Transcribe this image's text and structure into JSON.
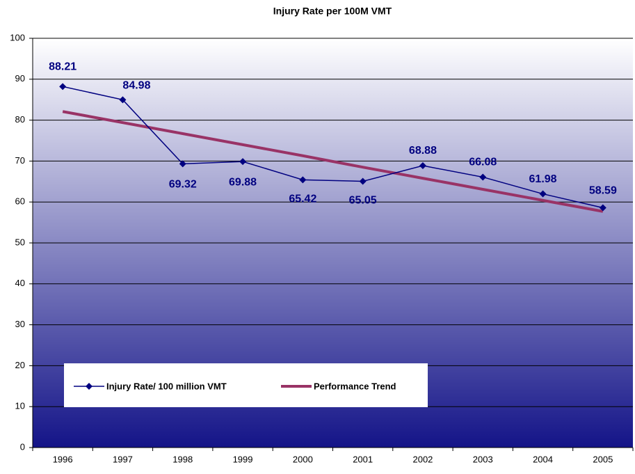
{
  "chart_data": {
    "type": "line",
    "title": "Injury Rate per 100M VMT",
    "categories": [
      "1996",
      "1997",
      "1998",
      "1999",
      "2000",
      "2001",
      "2002",
      "2003",
      "2004",
      "2005"
    ],
    "series": [
      {
        "name": "Injury Rate/ 100 million VMT",
        "color": "#000080",
        "marker": "diamond",
        "values": [
          88.21,
          84.98,
          69.32,
          69.88,
          65.42,
          65.05,
          68.88,
          66.08,
          61.98,
          58.59
        ]
      },
      {
        "name": "Performance Trend",
        "color": "#993366",
        "values": [
          82.1,
          79.4,
          76.7,
          74.0,
          71.3,
          68.5,
          65.8,
          63.1,
          60.4,
          57.7
        ]
      }
    ],
    "ylim": [
      0,
      100
    ],
    "yticks": [
      0,
      10,
      20,
      30,
      40,
      50,
      60,
      70,
      80,
      90,
      100
    ],
    "grid": true
  }
}
